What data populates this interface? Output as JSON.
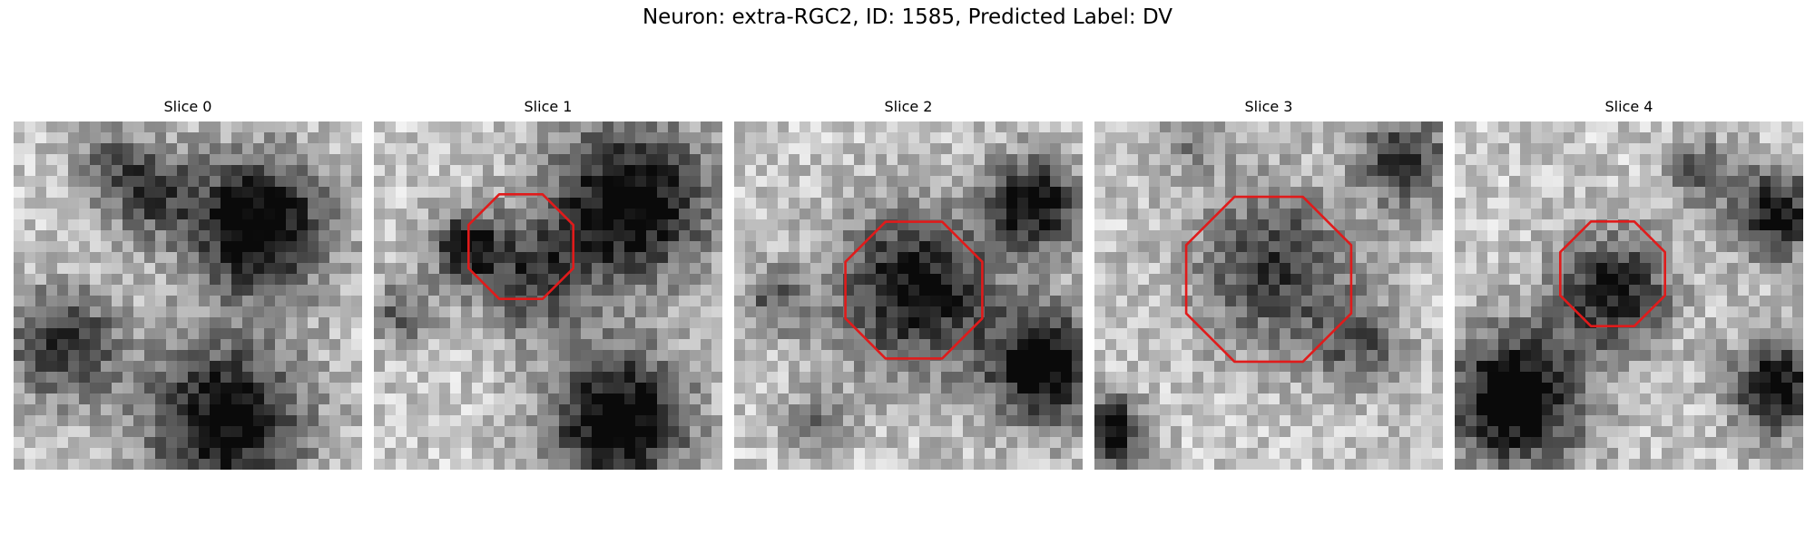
{
  "figure": {
    "title": "Neuron: extra-RGC2, ID: 1585, Predicted Label: DV",
    "contour_color": "#e01b1b"
  },
  "panels": [
    {
      "title": "Slice 0",
      "has_contour": false
    },
    {
      "title": "Slice 1",
      "has_contour": true
    },
    {
      "title": "Slice 2",
      "has_contour": true
    },
    {
      "title": "Slice 3",
      "has_contour": true
    },
    {
      "title": "Slice 4",
      "has_contour": true
    }
  ]
}
